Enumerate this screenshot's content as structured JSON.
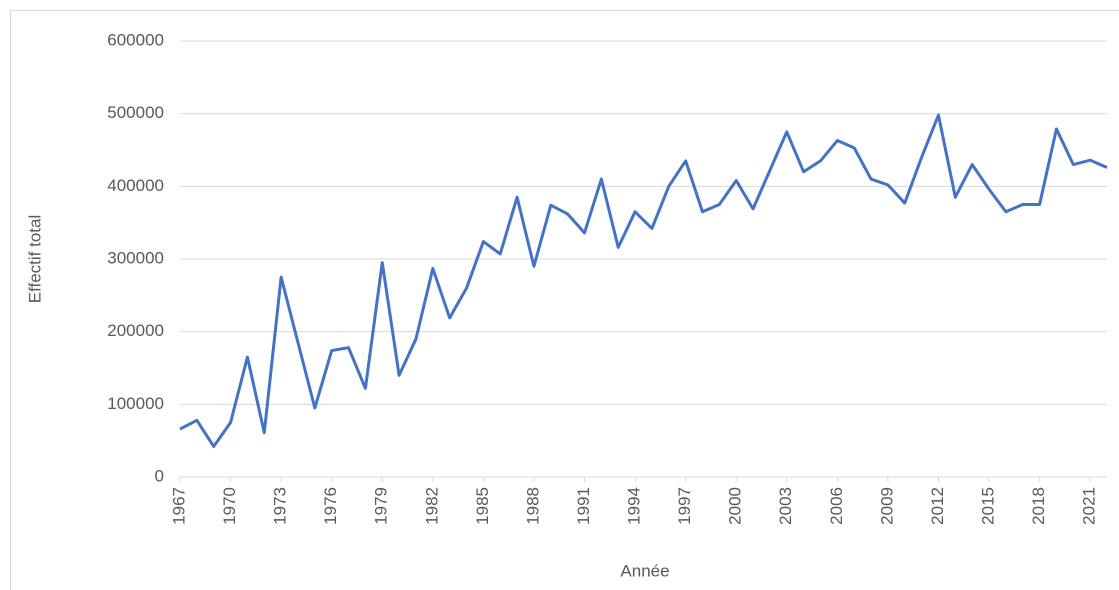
{
  "chart_data": {
    "type": "line",
    "x_label": "Année",
    "y_label": "Effectif total",
    "x": [
      1967,
      1968,
      1969,
      1970,
      1971,
      1972,
      1973,
      1974,
      1975,
      1976,
      1977,
      1978,
      1979,
      1980,
      1981,
      1982,
      1983,
      1984,
      1985,
      1986,
      1987,
      1988,
      1989,
      1990,
      1991,
      1992,
      1993,
      1994,
      1995,
      1996,
      1997,
      1998,
      1999,
      2000,
      2001,
      2002,
      2003,
      2004,
      2005,
      2006,
      2007,
      2008,
      2009,
      2010,
      2011,
      2012,
      2013,
      2014,
      2015,
      2016,
      2017,
      2018,
      2019,
      2020,
      2021,
      2022
    ],
    "series": [
      {
        "color": "#4472c4",
        "values": [
          66000,
          78000,
          42000,
          75000,
          165000,
          61000,
          275000,
          185000,
          95000,
          174000,
          178000,
          122000,
          295000,
          140000,
          190000,
          287000,
          219000,
          260000,
          324000,
          307000,
          385000,
          290000,
          374000,
          362000,
          336000,
          410000,
          316000,
          365000,
          342000,
          400000,
          435000,
          365000,
          375000,
          408000,
          369000,
          422000,
          475000,
          420000,
          435000,
          463000,
          453000,
          410000,
          402000,
          377000,
          440000,
          498000,
          385000,
          430000,
          396000,
          365000,
          375000,
          375000,
          479000,
          430000,
          436000,
          426000
        ]
      }
    ],
    "xlim": [
      1967,
      2022
    ],
    "xticks": [
      1967,
      1970,
      1973,
      1976,
      1979,
      1982,
      1985,
      1988,
      1991,
      1994,
      1997,
      2000,
      2003,
      2006,
      2009,
      2012,
      2015,
      2018,
      2021
    ],
    "ylim": [
      0,
      600000
    ],
    "yticks": [
      0,
      100000,
      200000,
      300000,
      400000,
      500000,
      600000
    ],
    "grid": true
  }
}
